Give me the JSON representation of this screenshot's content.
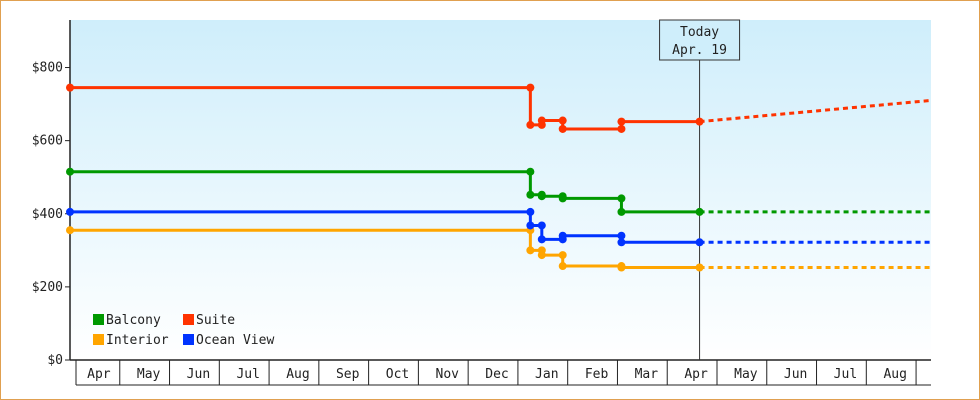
{
  "chart_data": {
    "type": "line",
    "title": "",
    "xlabel": "",
    "ylabel": "",
    "ylim": [
      0,
      930
    ],
    "y_ticks": [
      {
        "value": 0,
        "label": "$0"
      },
      {
        "value": 200,
        "label": "$200"
      },
      {
        "value": 400,
        "label": "$400"
      },
      {
        "value": 600,
        "label": "$600"
      },
      {
        "value": 800,
        "label": "$800"
      }
    ],
    "x_range": [
      0,
      17.3
    ],
    "month_labels": [
      "Apr",
      "May",
      "Jun",
      "Jul",
      "Aug",
      "Sep",
      "Oct",
      "Nov",
      "Dec",
      "Jan",
      "Feb",
      "Mar",
      "Apr",
      "May",
      "Jun",
      "Jul",
      "Aug"
    ],
    "today_marker": {
      "line1": "Today",
      "line2": "Apr. 19",
      "x": 12.65
    },
    "grid": false,
    "legend_position": "bottom-left",
    "series": [
      {
        "name": "Balcony",
        "color": "#009900",
        "points": [
          [
            0,
            515
          ],
          [
            9.25,
            515
          ],
          [
            9.25,
            452
          ],
          [
            9.48,
            452
          ],
          [
            9.48,
            448
          ],
          [
            9.9,
            448
          ],
          [
            9.9,
            442
          ],
          [
            11.08,
            442
          ],
          [
            11.08,
            405
          ],
          [
            12.65,
            405
          ]
        ],
        "projection": [
          [
            12.65,
            405
          ],
          [
            17.3,
            405
          ]
        ]
      },
      {
        "name": "Suite",
        "color": "#ff3300",
        "points": [
          [
            0,
            745
          ],
          [
            9.25,
            745
          ],
          [
            9.25,
            643
          ],
          [
            9.48,
            643
          ],
          [
            9.48,
            655
          ],
          [
            9.9,
            655
          ],
          [
            9.9,
            632
          ],
          [
            11.08,
            632
          ],
          [
            11.08,
            652
          ],
          [
            12.65,
            652
          ]
        ],
        "projection": [
          [
            12.65,
            652
          ],
          [
            17.3,
            710
          ]
        ]
      },
      {
        "name": "Interior",
        "color": "#ffa500",
        "points": [
          [
            0,
            355
          ],
          [
            9.25,
            355
          ],
          [
            9.25,
            300
          ],
          [
            9.48,
            300
          ],
          [
            9.48,
            287
          ],
          [
            9.9,
            287
          ],
          [
            9.9,
            257
          ],
          [
            11.08,
            257
          ],
          [
            11.08,
            253
          ],
          [
            12.65,
            253
          ]
        ],
        "projection": [
          [
            12.65,
            253
          ],
          [
            17.3,
            253
          ]
        ]
      },
      {
        "name": "Ocean View",
        "color": "#0033ff",
        "points": [
          [
            0,
            405
          ],
          [
            9.25,
            405
          ],
          [
            9.25,
            368
          ],
          [
            9.48,
            368
          ],
          [
            9.48,
            330
          ],
          [
            9.9,
            330
          ],
          [
            9.9,
            340
          ],
          [
            11.08,
            340
          ],
          [
            11.08,
            322
          ],
          [
            12.65,
            322
          ]
        ],
        "projection": [
          [
            12.65,
            322
          ],
          [
            17.3,
            322
          ]
        ]
      }
    ]
  }
}
